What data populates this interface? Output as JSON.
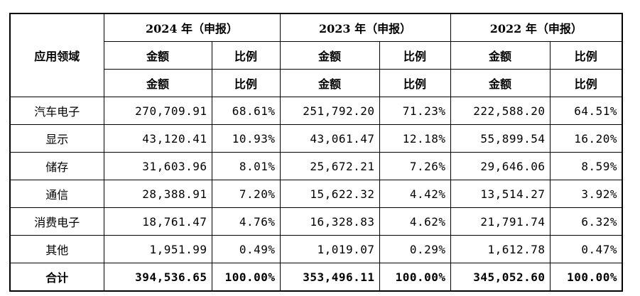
{
  "table": {
    "corner_header": "应用领域",
    "years": [
      "2024 年（申报）",
      "2023 年（申报）",
      "2022 年（申报）"
    ],
    "sub_headers": [
      "金额",
      "比例",
      "金额",
      "比例",
      "金额",
      "比例"
    ],
    "rows": [
      {
        "category": "汽车电子",
        "values": [
          "270,709.91",
          "68.61%",
          "251,792.20",
          "71.23%",
          "222,588.20",
          "64.51%"
        ]
      },
      {
        "category": "显示",
        "values": [
          "43,120.41",
          "10.93%",
          "43,061.47",
          "12.18%",
          "55,899.54",
          "16.20%"
        ]
      },
      {
        "category": "储存",
        "values": [
          "31,603.96",
          "8.01%",
          "25,672.21",
          "7.26%",
          "29,646.06",
          "8.59%"
        ]
      },
      {
        "category": "通信",
        "values": [
          "28,388.91",
          "7.20%",
          "15,622.32",
          "4.42%",
          "13,514.27",
          "3.92%"
        ]
      },
      {
        "category": "消费电子",
        "values": [
          "18,761.47",
          "4.76%",
          "16,328.83",
          "4.62%",
          "21,791.74",
          "6.32%"
        ]
      },
      {
        "category": "其他",
        "values": [
          "1,951.99",
          "0.49%",
          "1,019.07",
          "0.29%",
          "1,612.78",
          "0.47%"
        ]
      }
    ],
    "total": {
      "category": "合计",
      "values": [
        "394,536.65",
        "100.00%",
        "353,496.11",
        "100.00%",
        "345,052.60",
        "100.00%"
      ]
    }
  }
}
